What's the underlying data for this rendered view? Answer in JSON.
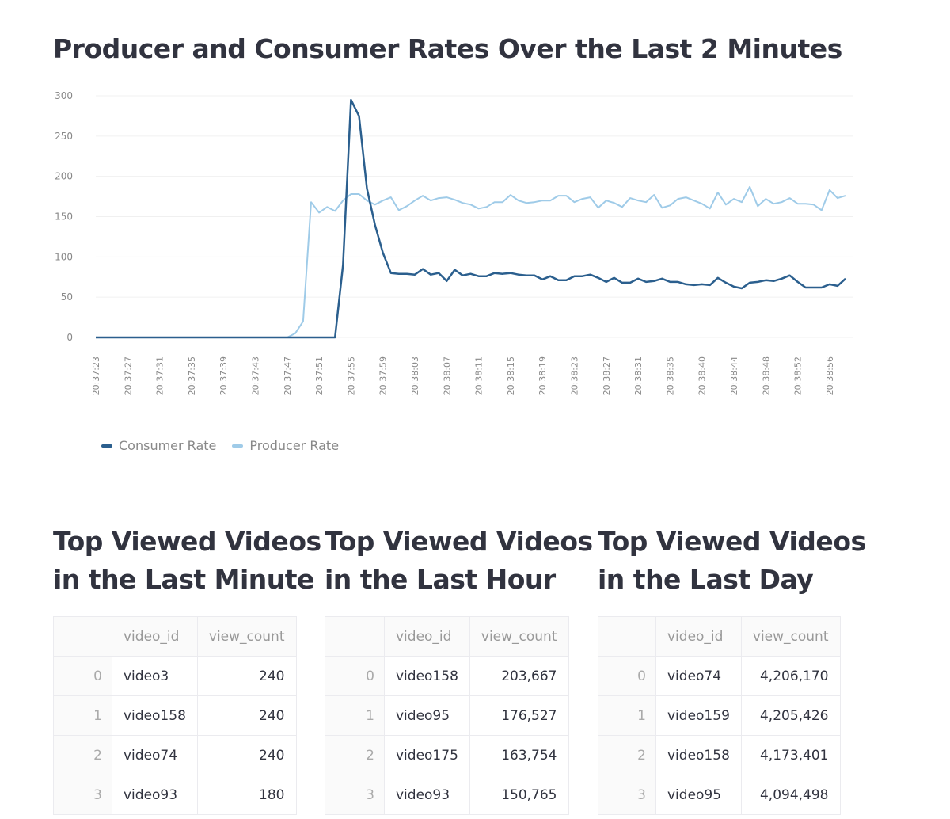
{
  "title": "Producer and Consumer Rates Over the Last 2 Minutes",
  "chart_data": {
    "type": "line",
    "title": "Producer and Consumer Rates Over the Last 2 Minutes",
    "xlabel": "",
    "ylabel": "",
    "ylim": [
      0,
      300
    ],
    "yticks": [
      0,
      50,
      100,
      150,
      200,
      250,
      300
    ],
    "grid": true,
    "legend_position": "bottom-left",
    "xtick_labels": [
      "20:37:23",
      "20:37:27",
      "20:37:31",
      "20:37:35",
      "20:37:39",
      "20:37:43",
      "20:37:47",
      "20:37:51",
      "20:37:55",
      "20:37:59",
      "20:38:03",
      "20:38:07",
      "20:38:11",
      "20:38:15",
      "20:38:19",
      "20:38:23",
      "20:38:27",
      "20:38:31",
      "20:38:35",
      "20:38:40",
      "20:38:44",
      "20:38:48",
      "20:38:52",
      "20:38:56"
    ],
    "x": [
      "20:37:23",
      "20:37:24",
      "20:37:25",
      "20:37:26",
      "20:37:27",
      "20:37:28",
      "20:37:29",
      "20:37:30",
      "20:37:31",
      "20:37:32",
      "20:37:33",
      "20:37:34",
      "20:37:35",
      "20:37:36",
      "20:37:37",
      "20:37:38",
      "20:37:39",
      "20:37:40",
      "20:37:41",
      "20:37:42",
      "20:37:43",
      "20:37:44",
      "20:37:45",
      "20:37:46",
      "20:37:47",
      "20:37:48",
      "20:37:49",
      "20:37:50",
      "20:37:51",
      "20:37:52",
      "20:37:53",
      "20:37:54",
      "20:37:55",
      "20:37:56",
      "20:37:57",
      "20:37:58",
      "20:37:59",
      "20:38:00",
      "20:38:01",
      "20:38:02",
      "20:38:03",
      "20:38:04",
      "20:38:05",
      "20:38:06",
      "20:38:07",
      "20:38:08",
      "20:38:09",
      "20:38:10",
      "20:38:11",
      "20:38:12",
      "20:38:13",
      "20:38:14",
      "20:38:15",
      "20:38:16",
      "20:38:17",
      "20:38:18",
      "20:38:19",
      "20:38:20",
      "20:38:21",
      "20:38:22",
      "20:38:23",
      "20:38:24",
      "20:38:25",
      "20:38:26",
      "20:38:27",
      "20:38:28",
      "20:38:29",
      "20:38:30",
      "20:38:31",
      "20:38:32",
      "20:38:33",
      "20:38:34",
      "20:38:35",
      "20:38:36",
      "20:38:37",
      "20:38:38",
      "20:38:40",
      "20:38:41",
      "20:38:42",
      "20:38:43",
      "20:38:44",
      "20:38:45",
      "20:38:46",
      "20:38:47",
      "20:38:48",
      "20:38:49",
      "20:38:50",
      "20:38:51",
      "20:38:52",
      "20:38:53",
      "20:38:54",
      "20:38:55",
      "20:38:56",
      "20:38:57",
      "20:38:58"
    ],
    "series": [
      {
        "name": "Consumer Rate",
        "color": "#2b5f8e",
        "values": [
          0,
          0,
          0,
          0,
          0,
          0,
          0,
          0,
          0,
          0,
          0,
          0,
          0,
          0,
          0,
          0,
          0,
          0,
          0,
          0,
          0,
          0,
          0,
          0,
          0,
          0,
          0,
          0,
          0,
          0,
          0,
          90,
          295,
          275,
          185,
          140,
          105,
          80,
          79,
          79,
          78,
          85,
          78,
          80,
          70,
          84,
          77,
          79,
          76,
          76,
          80,
          79,
          80,
          78,
          77,
          77,
          72,
          76,
          71,
          71,
          76,
          76,
          78,
          74,
          69,
          74,
          68,
          68,
          73,
          69,
          70,
          73,
          69,
          69,
          66,
          65,
          66,
          65,
          74,
          68,
          63,
          61,
          68,
          69,
          71,
          70,
          73,
          77,
          69,
          62,
          62,
          62,
          66,
          64,
          73
        ]
      },
      {
        "name": "Producer Rate",
        "color": "#9fcbe8",
        "values": [
          0,
          0,
          0,
          0,
          0,
          0,
          0,
          0,
          0,
          0,
          0,
          0,
          0,
          0,
          0,
          0,
          0,
          0,
          0,
          0,
          0,
          0,
          0,
          0,
          0,
          5,
          20,
          168,
          155,
          162,
          157,
          170,
          178,
          178,
          170,
          165,
          170,
          174,
          158,
          163,
          170,
          176,
          170,
          173,
          174,
          171,
          167,
          165,
          160,
          162,
          168,
          168,
          177,
          170,
          167,
          168,
          170,
          170,
          176,
          176,
          168,
          172,
          174,
          161,
          170,
          167,
          162,
          173,
          170,
          168,
          177,
          161,
          164,
          172,
          174,
          170,
          166,
          160,
          180,
          165,
          172,
          168,
          187,
          163,
          172,
          166,
          168,
          173,
          166,
          166,
          165,
          158,
          183,
          173,
          176
        ]
      }
    ]
  },
  "tables": [
    {
      "title_line1": "Top Viewed Videos",
      "title_line2": "in the Last Minute",
      "columns": [
        "",
        "video_id",
        "view_count"
      ],
      "rows": [
        [
          "0",
          "video3",
          "240"
        ],
        [
          "1",
          "video158",
          "240"
        ],
        [
          "2",
          "video74",
          "240"
        ],
        [
          "3",
          "video93",
          "180"
        ]
      ]
    },
    {
      "title_line1": "Top Viewed Videos",
      "title_line2": "in the Last Hour",
      "columns": [
        "",
        "video_id",
        "view_count"
      ],
      "rows": [
        [
          "0",
          "video158",
          "203,667"
        ],
        [
          "1",
          "video95",
          "176,527"
        ],
        [
          "2",
          "video175",
          "163,754"
        ],
        [
          "3",
          "video93",
          "150,765"
        ]
      ]
    },
    {
      "title_line1": "Top Viewed Videos",
      "title_line2": "in the Last Day",
      "columns": [
        "",
        "video_id",
        "view_count"
      ],
      "rows": [
        [
          "0",
          "video74",
          "4,206,170"
        ],
        [
          "1",
          "video159",
          "4,205,426"
        ],
        [
          "2",
          "video158",
          "4,173,401"
        ],
        [
          "3",
          "video95",
          "4,094,498"
        ]
      ]
    }
  ]
}
